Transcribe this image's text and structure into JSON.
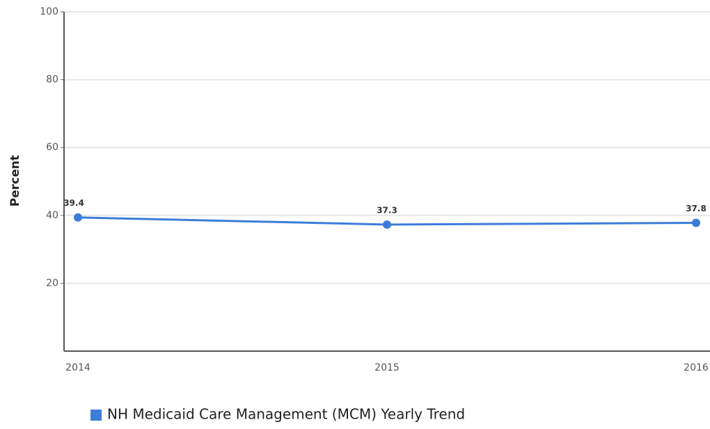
{
  "chart_data": {
    "type": "line",
    "y_label": "Percent",
    "categories": [
      "2014",
      "2015",
      "2016"
    ],
    "series": [
      {
        "name": "NH Medicaid Care Management (MCM) Yearly Trend",
        "color": "#3b7dd8",
        "values": [
          39.4,
          37.3,
          37.8
        ]
      }
    ],
    "ylim": [
      0,
      100
    ],
    "yticks": [
      20,
      40,
      60,
      80,
      100
    ],
    "grid": true,
    "legend": "bottom"
  }
}
